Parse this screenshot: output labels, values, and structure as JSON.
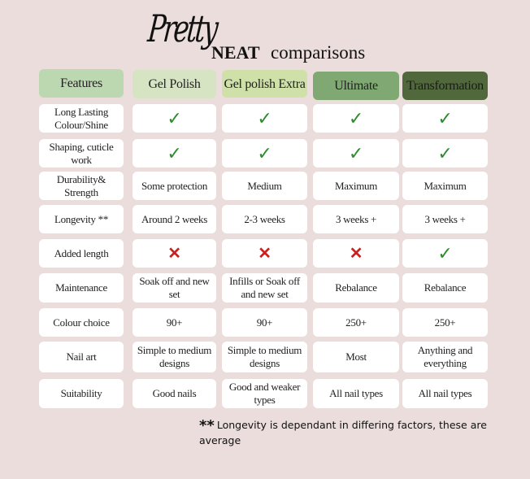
{
  "title": {
    "script": "Pretty",
    "bold": "NEAT",
    "rest": "comparisons"
  },
  "colors": {
    "background": "#ecdddd",
    "features": "#bcd8b0",
    "gel_polish": "#d6e4c4",
    "gel_polish_extra": "#cfe0a8",
    "ultimate": "#7fa872",
    "transformation": "#50683c",
    "check": "#2e8b2e",
    "cross": "#cc1f1f"
  },
  "headers": [
    "Features",
    "Gel Polish",
    "Gel polish Extra",
    "Ultimate",
    "Transformation"
  ],
  "rows": [
    {
      "feature": "Long Lasting Colour/Shine",
      "values": [
        "check",
        "check",
        "check",
        "check"
      ]
    },
    {
      "feature": "Shaping, cuticle work",
      "values": [
        "check",
        "check",
        "check",
        "check"
      ]
    },
    {
      "feature": "Durability& Strength",
      "values": [
        "Some protection",
        "Medium",
        "Maximum",
        "Maximum"
      ]
    },
    {
      "feature": "Longevity **",
      "values": [
        "Around 2 weeks",
        "2-3 weeks",
        "3  weeks +",
        "3 weeks  +"
      ]
    },
    {
      "feature": "Added length",
      "values": [
        "cross",
        "cross",
        "cross",
        "check"
      ]
    },
    {
      "feature": "Maintenance",
      "values": [
        "Soak off and new set",
        "Infills or Soak off and new set",
        "Rebalance",
        "Rebalance"
      ]
    },
    {
      "feature": "Colour choice",
      "values": [
        "90+",
        "90+",
        "250+",
        "250+"
      ]
    },
    {
      "feature": "Nail art",
      "values": [
        "Simple to medium designs",
        "Simple to medium designs",
        "Most",
        "Anything and everything"
      ]
    },
    {
      "feature": "Suitability",
      "values": [
        "Good nails",
        "Good and weaker types",
        "All nail types",
        "All nail types"
      ]
    }
  ],
  "footnote": {
    "marker": "**",
    "text": "Longevity is dependant in differing factors, these are average"
  }
}
